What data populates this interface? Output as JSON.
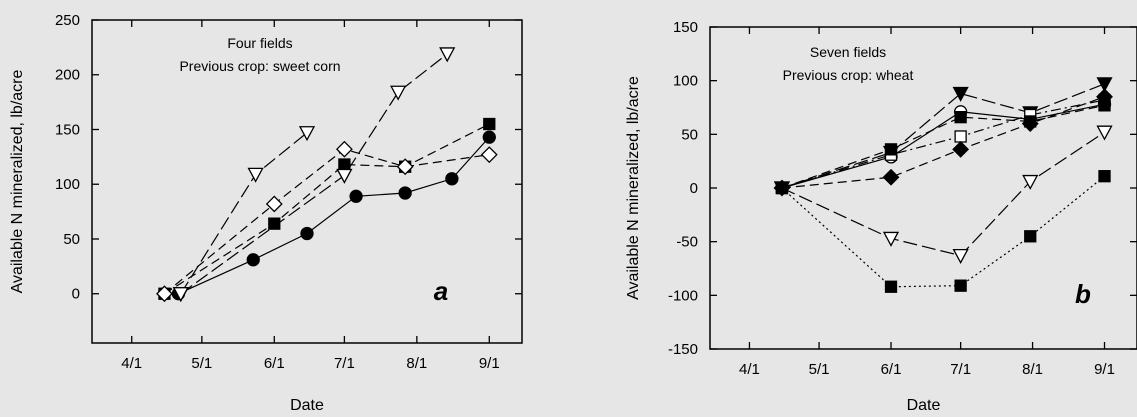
{
  "chart_data": [
    {
      "type": "line",
      "panel_letter": "a",
      "annotations": [
        "Four fields",
        "Previous crop: sweet corn"
      ],
      "xlabel": "Date",
      "ylabel": "Available N mineralized, lb/acre",
      "x_ticks": [
        "4/1",
        "5/1",
        "6/1",
        "7/1",
        "8/1",
        "9/1"
      ],
      "y_ticks": [
        "0",
        "50",
        "100",
        "150",
        "200",
        "250"
      ],
      "xlim": [
        "03-15",
        "09-15"
      ],
      "ylim": [
        -45,
        250
      ],
      "grid": false,
      "series": [
        {
          "marker": "circle-filled",
          "dash": "solid",
          "points": [
            [
              "04-21",
              0
            ],
            [
              "05-23",
              31
            ],
            [
              "06-15",
              55
            ],
            [
              "07-06",
              89
            ],
            [
              "07-27",
              92
            ],
            [
              "08-16",
              105
            ],
            [
              "09-01",
              143
            ]
          ]
        },
        {
          "marker": "square-filled",
          "dash": "dash",
          "points": [
            [
              "04-15",
              0
            ],
            [
              "06-01",
              64
            ],
            [
              "07-01",
              118
            ],
            [
              "07-27",
              116
            ],
            [
              "09-01",
              155
            ]
          ]
        },
        {
          "marker": "diamond-open",
          "dash": "dash",
          "points": [
            [
              "04-15",
              0
            ],
            [
              "06-01",
              82
            ],
            [
              "07-01",
              132
            ],
            [
              "07-27",
              116
            ],
            [
              "09-01",
              127
            ]
          ]
        },
        {
          "marker": "triangle-down-open",
          "dash": "longdash",
          "points": [
            [
              "04-22",
              0
            ],
            [
              "05-24",
              109
            ],
            [
              "06-15",
              147
            ]
          ]
        },
        {
          "marker": "triangle-down-open",
          "dash": "longdash",
          "points": [
            [
              "04-22",
              0
            ],
            [
              "07-01",
              108
            ],
            [
              "07-24",
              184
            ],
            [
              "08-14",
              219
            ]
          ]
        }
      ]
    },
    {
      "type": "line",
      "panel_letter": "b",
      "annotations": [
        "Seven fields",
        "Previous crop: wheat"
      ],
      "xlabel": "Date",
      "ylabel": "Available N mineralized, lb/acre",
      "x_ticks": [
        "4/1",
        "5/1",
        "6/1",
        "7/1",
        "8/1",
        "9/1"
      ],
      "y_ticks": [
        "-150",
        "-100",
        "-50",
        "0",
        "50",
        "100",
        "150"
      ],
      "xlim": [
        "03-15",
        "09-15"
      ],
      "ylim": [
        -150,
        150
      ],
      "grid": false,
      "series": [
        {
          "marker": "triangle-down-filled",
          "dash": "longdash",
          "points": [
            [
              "04-15",
              0
            ],
            [
              "06-01",
              33
            ],
            [
              "07-01",
              88
            ],
            [
              "07-31",
              70
            ],
            [
              "09-01",
              97
            ]
          ]
        },
        {
          "marker": "circle-open",
          "dash": "solid",
          "points": [
            [
              "04-15",
              0
            ],
            [
              "06-01",
              29
            ],
            [
              "07-01",
              71
            ],
            [
              "07-31",
              64
            ],
            [
              "09-01",
              78
            ]
          ]
        },
        {
          "marker": "square-open",
          "dash": "dashdot",
          "points": [
            [
              "04-15",
              0
            ],
            [
              "06-01",
              31
            ],
            [
              "07-01",
              48
            ],
            [
              "07-31",
              68
            ],
            [
              "09-01",
              82
            ]
          ]
        },
        {
          "marker": "diamond-filled",
          "dash": "dash",
          "points": [
            [
              "04-15",
              0
            ],
            [
              "06-01",
              10
            ],
            [
              "07-01",
              36
            ],
            [
              "07-31",
              60
            ],
            [
              "09-01",
              85
            ]
          ]
        },
        {
          "marker": "square-filled",
          "dash": "dash",
          "points": [
            [
              "04-15",
              0
            ],
            [
              "06-01",
              36
            ],
            [
              "07-01",
              66
            ],
            [
              "07-31",
              62
            ],
            [
              "09-01",
              77
            ]
          ]
        },
        {
          "marker": "triangle-down-open",
          "dash": "longdash",
          "points": [
            [
              "04-15",
              0
            ],
            [
              "06-01",
              -47
            ],
            [
              "07-01",
              -63
            ],
            [
              "07-31",
              6
            ],
            [
              "09-01",
              52
            ]
          ]
        },
        {
          "marker": "square-filled",
          "dash": "dot",
          "points": [
            [
              "04-15",
              0
            ],
            [
              "06-01",
              -92
            ],
            [
              "07-01",
              -91
            ],
            [
              "07-31",
              -45
            ],
            [
              "09-01",
              11
            ]
          ]
        }
      ]
    }
  ]
}
